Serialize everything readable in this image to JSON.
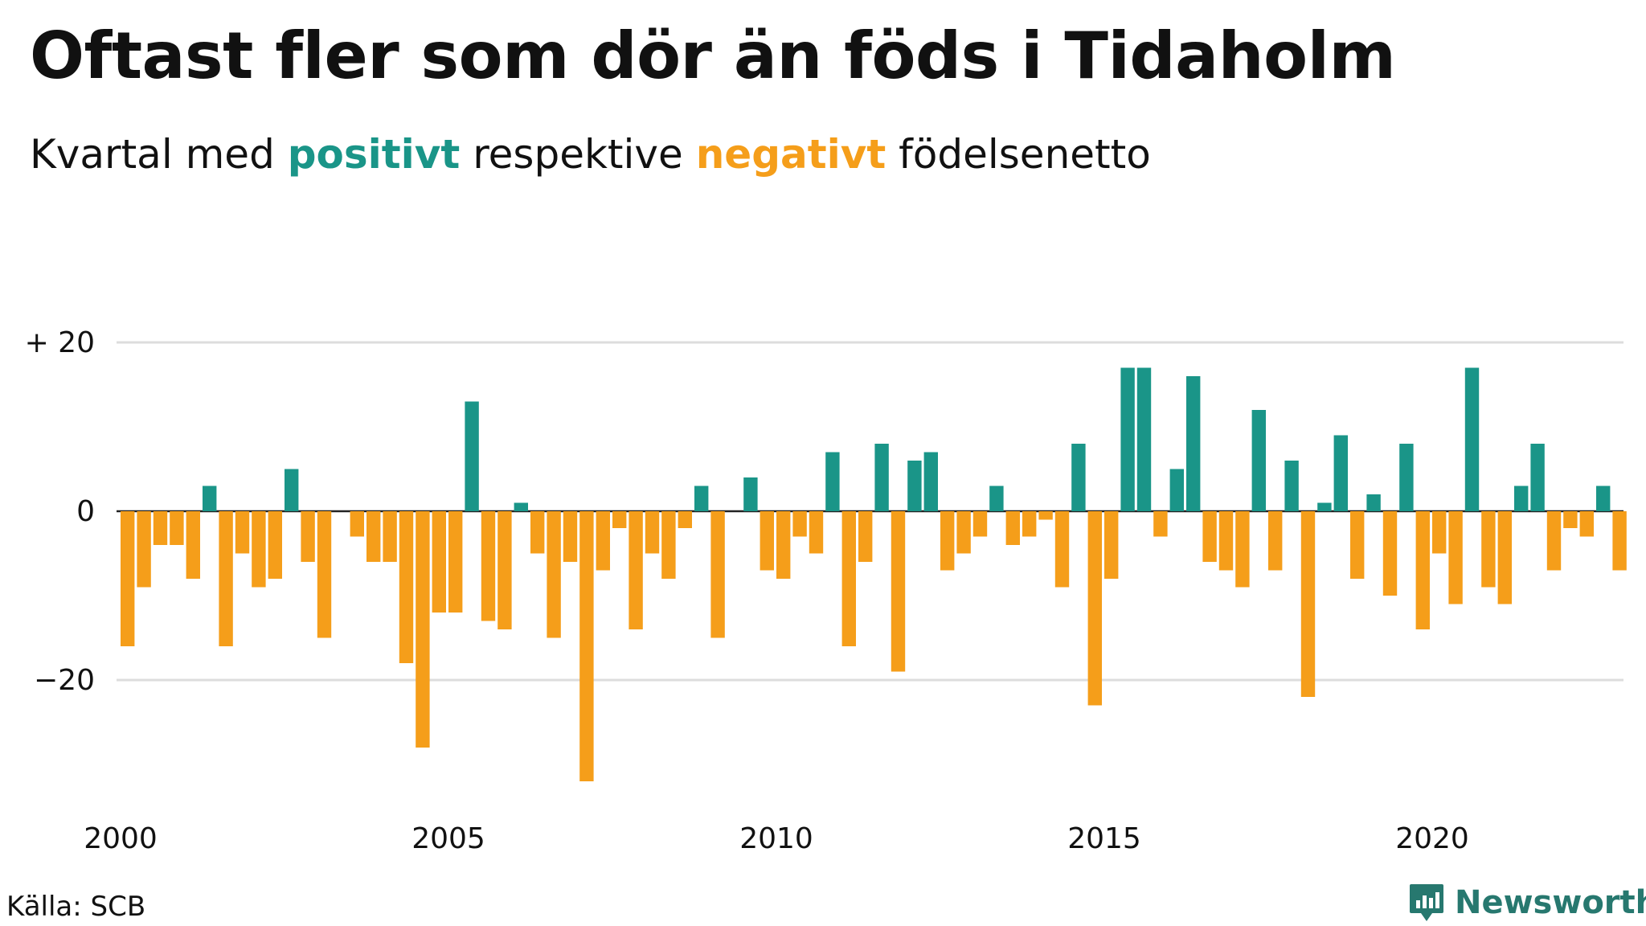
{
  "title": "Oftast fler som dör än föds i Tidaholm",
  "subtitle": {
    "prefix": "Kvartal med",
    "positive_word": "positivt",
    "middle": "respektive",
    "negative_word": "negativt",
    "suffix": "födelsenetto"
  },
  "source": "Källa: SCB",
  "brand": "Newsworthy",
  "colors": {
    "positive": "#1a9588",
    "negative": "#f59e1a",
    "grid": "#dddddd",
    "brand": "#27786f"
  },
  "chart_data": {
    "type": "bar",
    "title": "Oftast fler som dör än föds i Tidaholm",
    "subtitle": "Kvartal med positivt respektive negativt födelsenetto",
    "ylim": [
      -33,
      22
    ],
    "y_ticks": [
      {
        "value": 20,
        "label": "+ 20"
      },
      {
        "value": 0,
        "label": "0"
      },
      {
        "value": -20,
        "label": "−20"
      }
    ],
    "x_ticks": [
      2000,
      2005,
      2010,
      2015,
      2020
    ],
    "start_quarter": "2000 Q1",
    "grid": true,
    "values": [
      -16,
      -9,
      -4,
      -4,
      -8,
      3,
      -16,
      -5,
      -9,
      -8,
      5,
      -6,
      -15,
      0,
      -3,
      -6,
      -6,
      -18,
      -28,
      -12,
      -12,
      13,
      -13,
      -14,
      1,
      -5,
      -15,
      -6,
      -32,
      -7,
      -2,
      -14,
      -5,
      -8,
      -2,
      3,
      -15,
      0,
      4,
      -7,
      -8,
      -3,
      -5,
      7,
      -16,
      -6,
      8,
      -19,
      6,
      7,
      -7,
      -5,
      -3,
      3,
      -4,
      -3,
      -1,
      -9,
      8,
      -23,
      -8,
      17,
      17,
      -3,
      5,
      16,
      -6,
      -7,
      -9,
      12,
      -7,
      6,
      -22,
      1,
      9,
      -8,
      2,
      -10,
      8,
      -14,
      -5,
      -11,
      17,
      -9,
      -11,
      3,
      8,
      -7,
      -2,
      -3,
      3,
      -7
    ]
  }
}
